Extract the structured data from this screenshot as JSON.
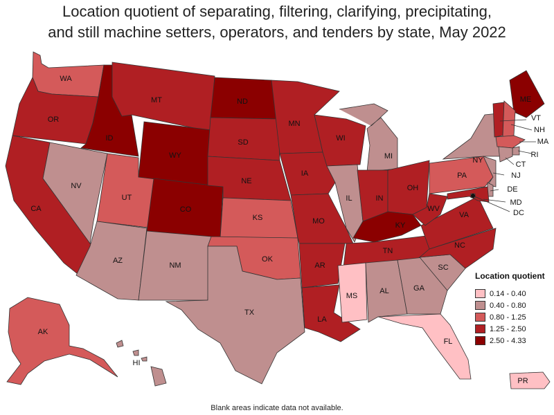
{
  "title": {
    "line1": "Location quotient of separating, filtering, clarifying, precipitating,",
    "line2": "and still machine setters, operators, and tenders by state, May 2022"
  },
  "legend": {
    "title": "Location quotient",
    "items": [
      {
        "label": "0.14 - 0.40",
        "color": "#ffc0c4"
      },
      {
        "label": "0.40 - 0.80",
        "color": "#bf8f8f"
      },
      {
        "label": "0.80 - 1.25",
        "color": "#d45a5a"
      },
      {
        "label": "1.25 - 2.50",
        "color": "#b01f23"
      },
      {
        "label": "2.50 - 4.33",
        "color": "#8b0000"
      }
    ]
  },
  "footnote": "Blank areas indicate data not available.",
  "states": [
    {
      "abbr": "WA",
      "bin": 2
    },
    {
      "abbr": "OR",
      "bin": 3
    },
    {
      "abbr": "CA",
      "bin": 3
    },
    {
      "abbr": "ID",
      "bin": 4
    },
    {
      "abbr": "NV",
      "bin": 1
    },
    {
      "abbr": "UT",
      "bin": 2
    },
    {
      "abbr": "AZ",
      "bin": 1
    },
    {
      "abbr": "MT",
      "bin": 3
    },
    {
      "abbr": "WY",
      "bin": 4
    },
    {
      "abbr": "CO",
      "bin": 4
    },
    {
      "abbr": "NM",
      "bin": 1
    },
    {
      "abbr": "ND",
      "bin": 4
    },
    {
      "abbr": "SD",
      "bin": 3
    },
    {
      "abbr": "NE",
      "bin": 3
    },
    {
      "abbr": "KS",
      "bin": 2
    },
    {
      "abbr": "OK",
      "bin": 2
    },
    {
      "abbr": "TX",
      "bin": 1
    },
    {
      "abbr": "MN",
      "bin": 3
    },
    {
      "abbr": "IA",
      "bin": 3
    },
    {
      "abbr": "MO",
      "bin": 3
    },
    {
      "abbr": "AR",
      "bin": 3
    },
    {
      "abbr": "LA",
      "bin": 3
    },
    {
      "abbr": "WI",
      "bin": 3
    },
    {
      "abbr": "IL",
      "bin": 1
    },
    {
      "abbr": "MI",
      "bin": 1
    },
    {
      "abbr": "IN",
      "bin": 3
    },
    {
      "abbr": "OH",
      "bin": 3
    },
    {
      "abbr": "KY",
      "bin": 4
    },
    {
      "abbr": "TN",
      "bin": 3
    },
    {
      "abbr": "MS",
      "bin": 0
    },
    {
      "abbr": "AL",
      "bin": 1
    },
    {
      "abbr": "GA",
      "bin": 1
    },
    {
      "abbr": "FL",
      "bin": 0
    },
    {
      "abbr": "SC",
      "bin": 1
    },
    {
      "abbr": "NC",
      "bin": 3
    },
    {
      "abbr": "VA",
      "bin": 3
    },
    {
      "abbr": "WV",
      "bin": 3
    },
    {
      "abbr": "PA",
      "bin": 2
    },
    {
      "abbr": "NY",
      "bin": 1
    },
    {
      "abbr": "ME",
      "bin": 4
    },
    {
      "abbr": "VT",
      "bin": 3
    },
    {
      "abbr": "NH",
      "bin": 2
    },
    {
      "abbr": "MA",
      "bin": 2
    },
    {
      "abbr": "RI",
      "bin": 1
    },
    {
      "abbr": "CT",
      "bin": 1
    },
    {
      "abbr": "NJ",
      "bin": 1
    },
    {
      "abbr": "DE",
      "bin": 1
    },
    {
      "abbr": "MD",
      "bin": 3
    },
    {
      "abbr": "DC",
      "bin": 1
    },
    {
      "abbr": "AK",
      "bin": 2
    },
    {
      "abbr": "HI",
      "bin": 1
    },
    {
      "abbr": "PR",
      "bin": 0
    }
  ]
}
